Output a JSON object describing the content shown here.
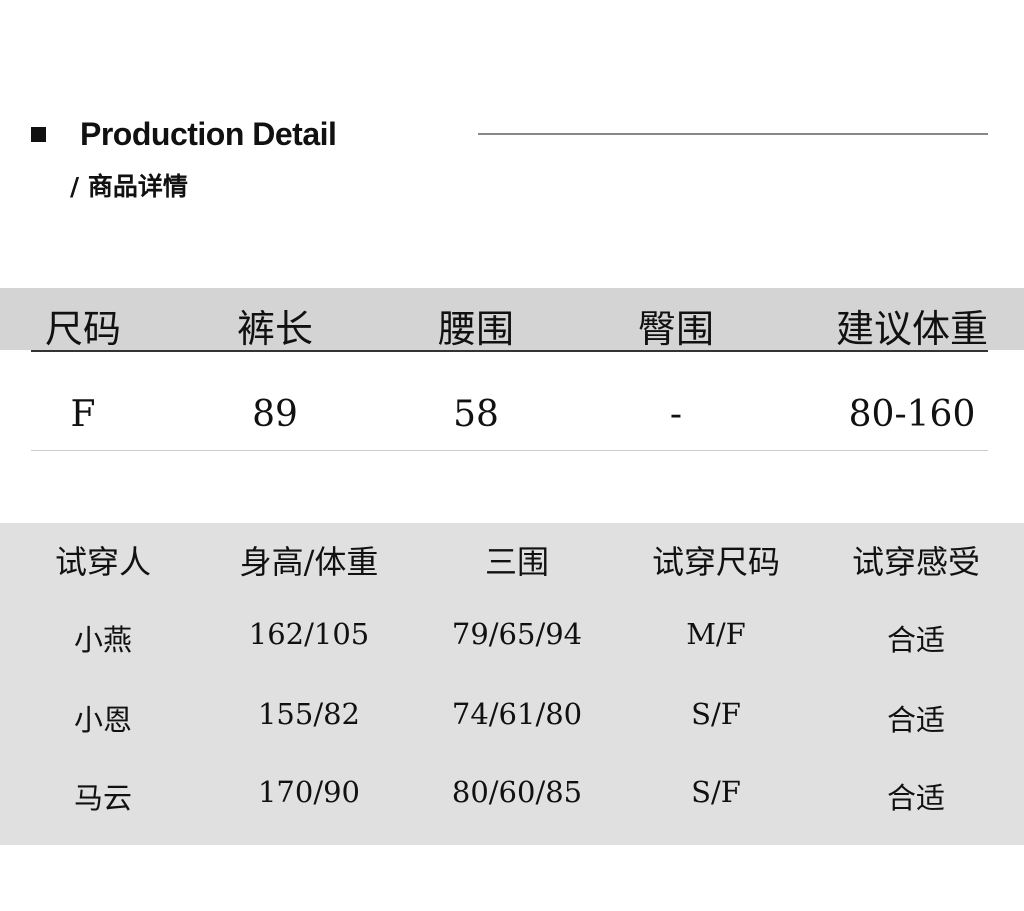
{
  "header": {
    "title": "Production Detail",
    "subtitle": "/ 商品详情"
  },
  "size_table": {
    "columns": [
      "尺码",
      "裤长",
      "腰围",
      "臀围",
      "建议体重"
    ],
    "rows": [
      [
        "F",
        "89",
        "58",
        "-",
        "80-160"
      ]
    ]
  },
  "fit_table": {
    "columns": [
      "试穿人",
      "身高/体重",
      "三围",
      "试穿尺码",
      "试穿感受"
    ],
    "rows": [
      [
        "小燕",
        "162/105",
        "79/65/94",
        "M/F",
        "合适"
      ],
      [
        "小恩",
        "155/82",
        "74/61/80",
        "S/F",
        "合适"
      ],
      [
        "马云",
        "170/90",
        "80/60/85",
        "S/F",
        "合适"
      ]
    ]
  }
}
